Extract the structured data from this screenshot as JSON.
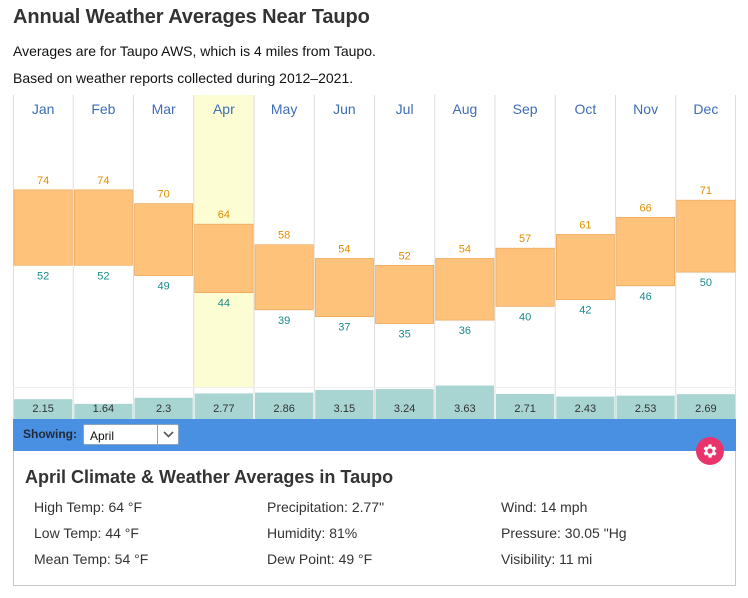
{
  "header": {
    "title": "Annual Weather Averages Near Taupo",
    "subtitle_line1": "Averages are for Taupo AWS, which is 4 miles from Taupo.",
    "subtitle_line2": "Based on weather reports collected during 2012–2021."
  },
  "chart_data": {
    "type": "bar",
    "title": "Annual Weather Averages Near Taupo",
    "categories": [
      "Jan",
      "Feb",
      "Mar",
      "Apr",
      "May",
      "Jun",
      "Jul",
      "Aug",
      "Sep",
      "Oct",
      "Nov",
      "Dec"
    ],
    "series": [
      {
        "name": "High Temp (°F)",
        "values": [
          74,
          74,
          70,
          64,
          58,
          54,
          52,
          54,
          57,
          61,
          66,
          71
        ]
      },
      {
        "name": "Low Temp (°F)",
        "values": [
          52,
          52,
          49,
          44,
          39,
          37,
          35,
          36,
          40,
          42,
          46,
          50
        ]
      },
      {
        "name": "Precipitation (in)",
        "values": [
          "2.15",
          "1.64",
          "2.3",
          "2.77",
          "2.86",
          "3.15",
          "3.24",
          "3.63",
          "2.71",
          "2.43",
          "2.53",
          "2.69"
        ]
      }
    ],
    "temp_range_f": [
      20,
      90
    ],
    "precip_max_in": 6.5,
    "selected_index": 3,
    "colors": {
      "temp_bar": "#ffc27a",
      "temp_bar_border": "#e8a050",
      "high_label": "#e08e00",
      "low_label": "#1a8a8a",
      "month_label": "#3e6db5",
      "precip_bar": "#a8d5d2",
      "precip_label": "#333333",
      "highlight": "#fdfdd3",
      "grid": "#dddddd"
    }
  },
  "controls": {
    "showing_label": "Showing:",
    "selected_month": "April",
    "bar_color": "#4a90e2",
    "gear_color": "#e8336b"
  },
  "details": {
    "title": "April Climate & Weather Averages in Taupo",
    "high_temp": "High Temp: 64 °F",
    "low_temp": "Low Temp: 44 °F",
    "mean_temp": "Mean Temp: 54 °F",
    "precipitation": "Precipitation: 2.77\"",
    "humidity": "Humidity: 81%",
    "dew_point": "Dew Point: 49 °F",
    "wind": "Wind: 14 mph",
    "pressure": "Pressure: 30.05 \"Hg",
    "visibility": "Visibility: 11 mi"
  }
}
